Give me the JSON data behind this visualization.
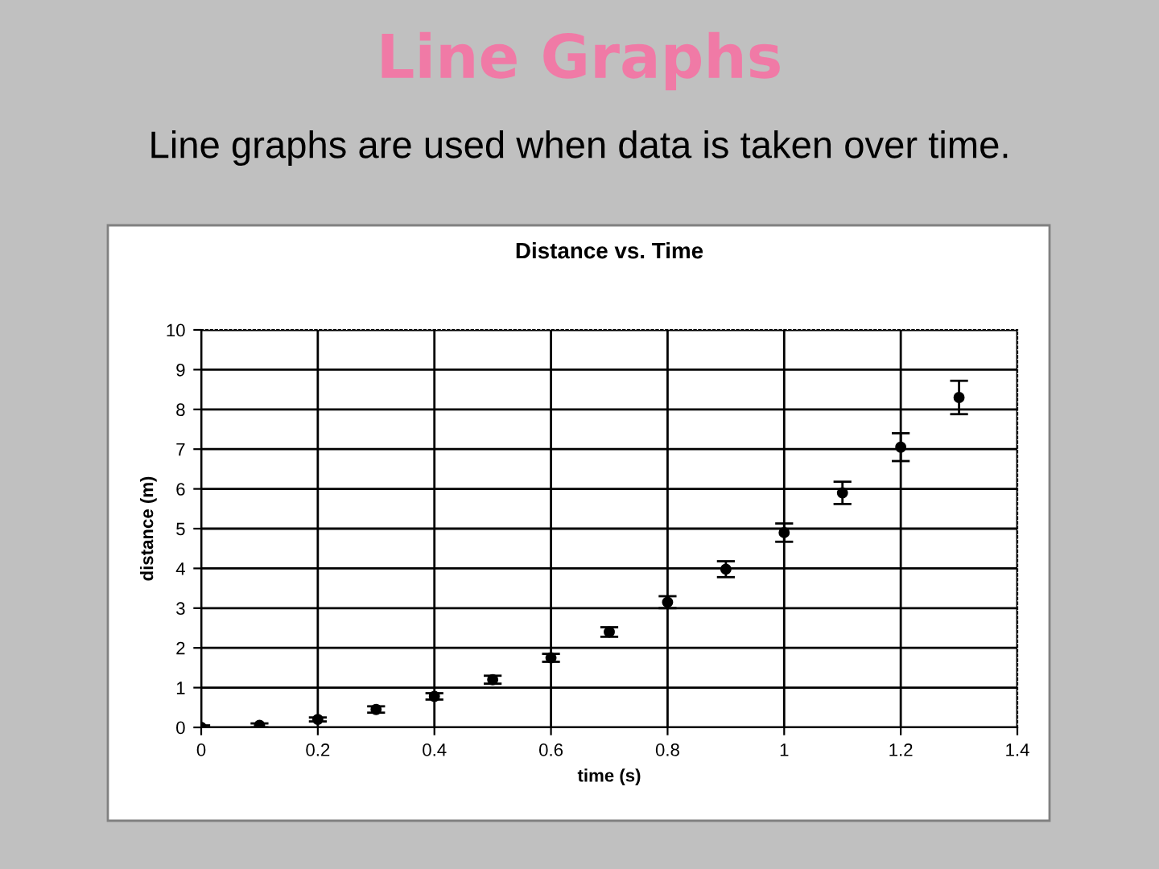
{
  "chart_data": {
    "type": "scatter",
    "title": "Line Graphs",
    "subtitle": "Line graphs are used when data is taken over time.",
    "annotations": [
      "Distance vs. Time"
    ],
    "xlabel": "time (s)",
    "ylabel": "distance (m)",
    "x": [
      0,
      0.1,
      0.2,
      0.3,
      0.4,
      0.5,
      0.6,
      0.7,
      0.8,
      0.9,
      1.0,
      1.1,
      1.2,
      1.3
    ],
    "values": [
      0,
      0.05,
      0.2,
      0.45,
      0.78,
      1.2,
      1.75,
      2.4,
      3.15,
      3.98,
      4.9,
      5.9,
      7.05,
      8.3
    ],
    "errors": [
      0.05,
      0.05,
      0.05,
      0.08,
      0.08,
      0.1,
      0.1,
      0.12,
      0.15,
      0.2,
      0.23,
      0.28,
      0.35,
      0.42
    ],
    "color": "#000000",
    "marker": "circle",
    "xlim": [
      0,
      1.4
    ],
    "xticks": [
      0,
      0.2,
      0.4,
      0.6,
      0.8,
      1,
      1.2,
      1.4
    ],
    "ylim": [
      0,
      10
    ],
    "yticks": [
      0,
      1,
      2,
      3,
      4,
      5,
      6,
      7,
      8,
      9,
      10
    ],
    "grid": true,
    "legend": false
  }
}
